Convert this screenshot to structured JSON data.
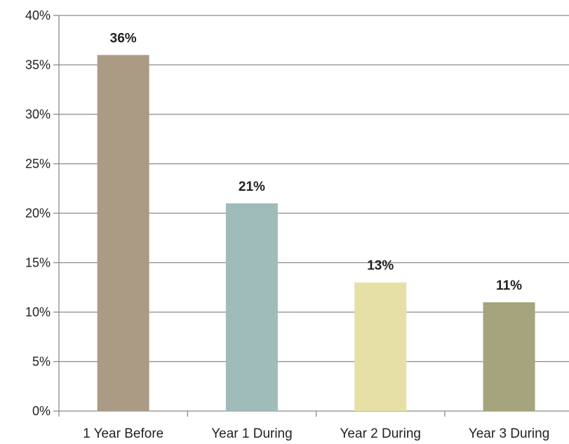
{
  "chart_data": {
    "type": "bar",
    "categories": [
      "1 Year Before",
      "Year 1 During",
      "Year 2 During",
      "Year 3 During"
    ],
    "values": [
      36,
      21,
      13,
      11
    ],
    "data_labels": [
      "36%",
      "21%",
      "13%",
      "11%"
    ],
    "bar_colors": [
      "#ab9b85",
      "#9fbcba",
      "#e6e0a6",
      "#a6a47c"
    ],
    "ylim": [
      0,
      40
    ],
    "y_ticks": [
      0,
      5,
      10,
      15,
      20,
      25,
      30,
      35,
      40
    ],
    "y_tick_labels": [
      "0%",
      "5%",
      "10%",
      "15%",
      "20%",
      "25%",
      "30%",
      "35%",
      "40%"
    ],
    "grid": true,
    "legend": "none",
    "title": "",
    "xlabel": "",
    "ylabel": ""
  }
}
